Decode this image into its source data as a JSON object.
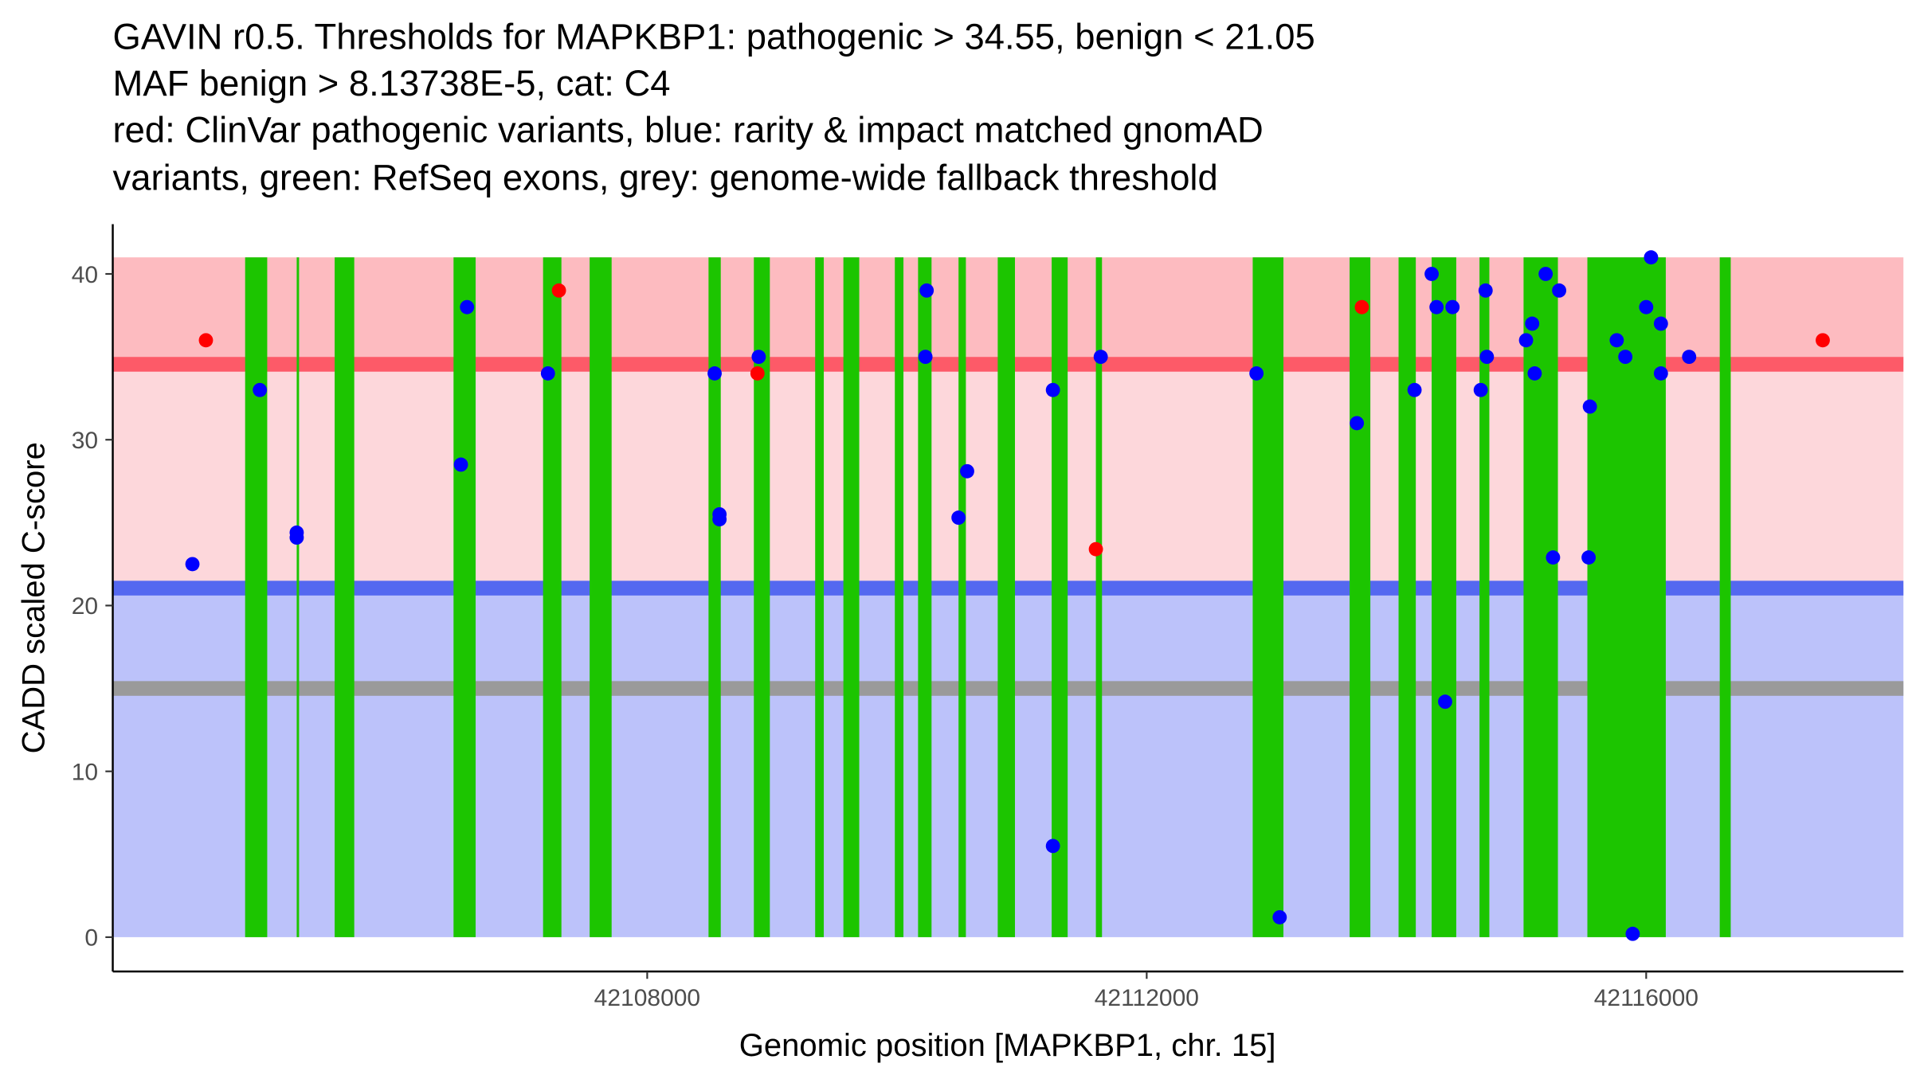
{
  "chart_data": {
    "type": "scatter",
    "title_lines": [
      "GAVIN r0.5. Thresholds for MAPKBP1: pathogenic > 34.55, benign < 21.05",
      "MAF benign > 8.13738E-5, cat: C4",
      "red: ClinVar pathogenic variants, blue: rarity & impact matched gnomAD",
      "variants, green: RefSeq exons, grey: genome-wide fallback threshold"
    ],
    "xlabel": "Genomic position [MAPKBP1, chr. 15]",
    "ylabel": "CADD scaled C-score",
    "xlim": [
      42103720,
      42118060
    ],
    "ylim": [
      -2.07,
      43
    ],
    "xticks": [
      42108000,
      42112000,
      42116000
    ],
    "xtick_labels": [
      "42108000",
      "42112000",
      "42116000"
    ],
    "yticks": [
      0,
      10,
      20,
      30,
      40
    ],
    "ytick_labels": [
      "0",
      "10",
      "20",
      "30",
      "40"
    ],
    "grid": false,
    "thresholds": {
      "pathogenic": 34.55,
      "benign": 21.05,
      "fallback": 15,
      "band_top": 41
    },
    "colors": {
      "pathogenic_band": "#FDBBC0",
      "mid_band": "#FDD7DB",
      "benign_band": "#BCC2FA",
      "pathogenic_line": "#FD5A68",
      "benign_line": "#5468F0",
      "fallback_line": "#9A9A9A",
      "exon": "#1CC500",
      "clinvar": "#FF0000",
      "gnomad": "#0000FF"
    },
    "exons": [
      [
        42104780,
        42104957
      ],
      [
        42105193,
        42105212
      ],
      [
        42105497,
        42105654
      ],
      [
        42106449,
        42106626
      ],
      [
        42107166,
        42107313
      ],
      [
        42107539,
        42107715
      ],
      [
        42108491,
        42108589
      ],
      [
        42108854,
        42108982
      ],
      [
        42109345,
        42109414
      ],
      [
        42109571,
        42109698
      ],
      [
        42109983,
        42110052
      ],
      [
        42110169,
        42110277
      ],
      [
        42110493,
        42110552
      ],
      [
        42110807,
        42110945
      ],
      [
        42111239,
        42111367
      ],
      [
        42111593,
        42111642
      ],
      [
        42112849,
        42113095
      ],
      [
        42113625,
        42113791
      ],
      [
        42114017,
        42114155
      ],
      [
        42114282,
        42114479
      ],
      [
        42114665,
        42114744
      ],
      [
        42115018,
        42115293
      ],
      [
        42115529,
        42116157
      ],
      [
        42116589,
        42116677
      ]
    ],
    "series": [
      {
        "name": "ClinVar pathogenic",
        "color_key": "clinvar",
        "points": [
          [
            42104466,
            36
          ],
          [
            42107293,
            39
          ],
          [
            42108883,
            34
          ],
          [
            42111593,
            23.4
          ],
          [
            42113723,
            38
          ],
          [
            42117414,
            36
          ]
        ]
      },
      {
        "name": "gnomAD matched",
        "color_key": "gnomad",
        "points": [
          [
            42104358,
            22.5
          ],
          [
            42104898,
            33
          ],
          [
            42105193,
            24.4
          ],
          [
            42105193,
            24.1
          ],
          [
            42106508,
            28.5
          ],
          [
            42106557,
            38
          ],
          [
            42107205,
            34
          ],
          [
            42108540,
            34
          ],
          [
            42108579,
            25.5
          ],
          [
            42108579,
            25.2
          ],
          [
            42108893,
            35
          ],
          [
            42110228,
            35
          ],
          [
            42110238,
            39
          ],
          [
            42110493,
            25.3
          ],
          [
            42110562,
            28.1
          ],
          [
            42111249,
            33
          ],
          [
            42111249,
            5.5
          ],
          [
            42111632,
            35
          ],
          [
            42112879,
            34
          ],
          [
            42113065,
            1.2
          ],
          [
            42113683,
            31
          ],
          [
            42114145,
            33
          ],
          [
            42114282,
            40
          ],
          [
            42114321,
            38
          ],
          [
            42114390,
            14.2
          ],
          [
            42114449,
            38
          ],
          [
            42114675,
            33
          ],
          [
            42114714,
            39
          ],
          [
            42114724,
            35
          ],
          [
            42115038,
            36
          ],
          [
            42115087,
            37
          ],
          [
            42115107,
            34
          ],
          [
            42115195,
            40
          ],
          [
            42115254,
            22.9
          ],
          [
            42115303,
            39
          ],
          [
            42115549,
            32
          ],
          [
            42115539,
            22.9
          ],
          [
            42115764,
            36
          ],
          [
            42115833,
            35
          ],
          [
            42115892,
            0.2
          ],
          [
            42116000,
            38
          ],
          [
            42116039,
            41
          ],
          [
            42116118,
            37
          ],
          [
            42116118,
            34
          ],
          [
            42116344,
            35
          ]
        ]
      }
    ]
  }
}
